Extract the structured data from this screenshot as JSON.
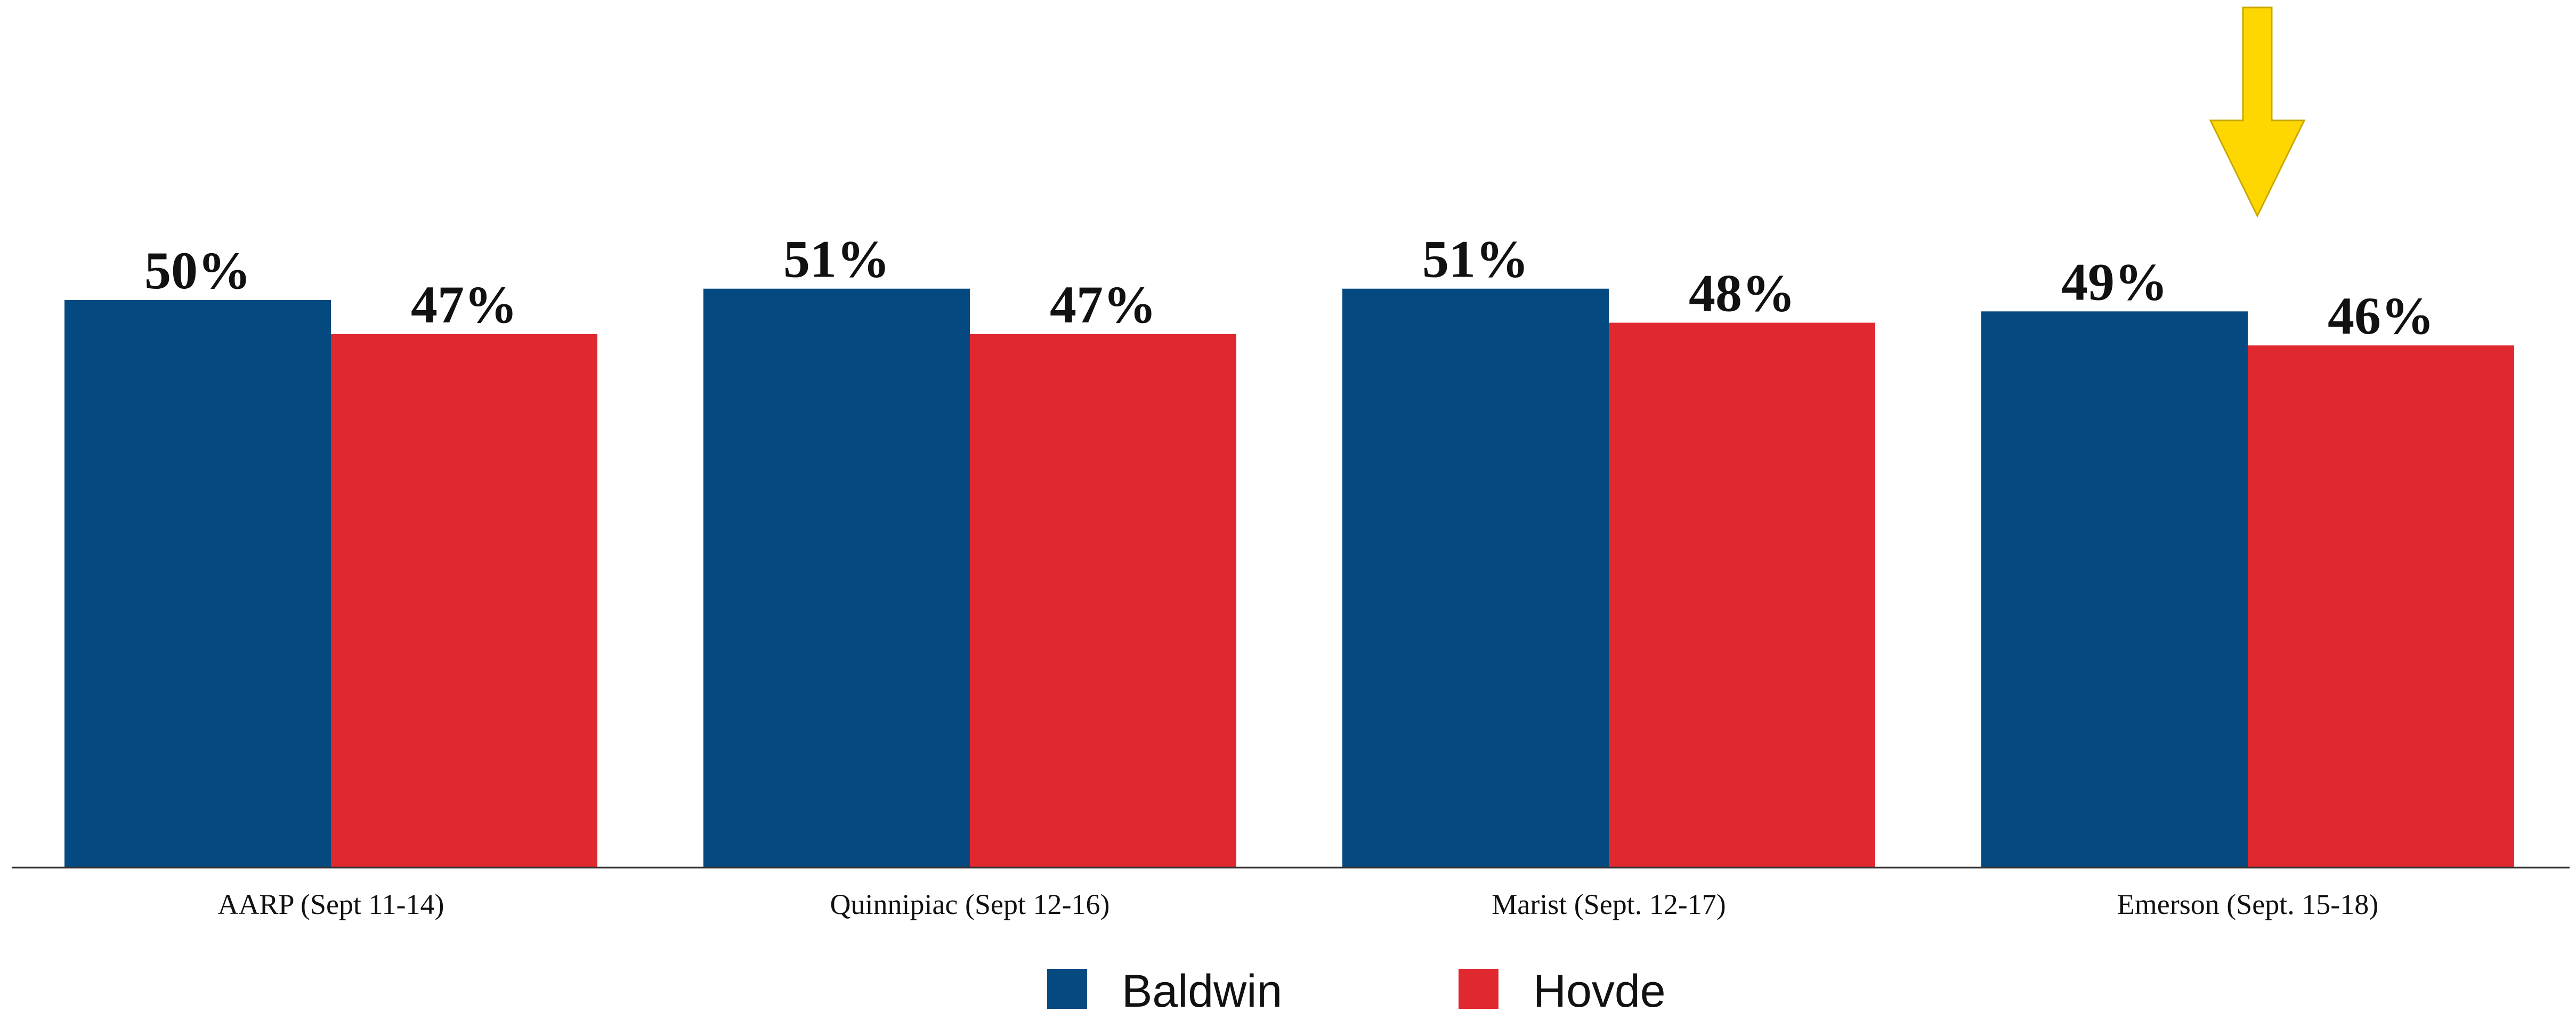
{
  "chart_data": {
    "type": "bar",
    "title": "",
    "xlabel": "",
    "ylabel": "",
    "ylim": [
      0,
      55
    ],
    "grid": false,
    "legend": "bottom",
    "categories": [
      "AARP (Sept 11-14)",
      "Quinnipiac (Sept 12-16)",
      "Marist (Sept. 12-17)",
      "Emerson (Sept. 15-18)"
    ],
    "series": [
      {
        "name": "Baldwin",
        "color": "#044A80",
        "values": [
          50,
          51,
          51,
          49
        ]
      },
      {
        "name": "Hovde",
        "color": "#E0282F",
        "values": [
          47,
          47,
          48,
          46
        ]
      }
    ],
    "value_suffix": "%",
    "annotation": {
      "type": "arrow",
      "direction": "down",
      "target_category": "Emerson (Sept. 15-18)",
      "color": "#FFD700"
    }
  }
}
